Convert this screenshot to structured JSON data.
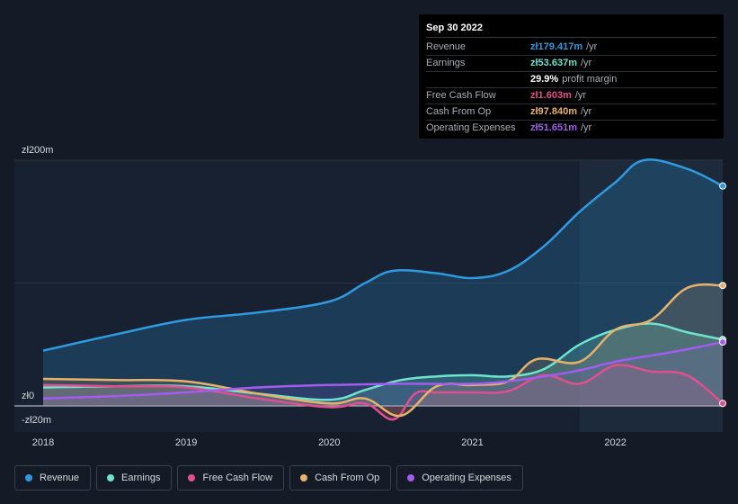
{
  "tooltip": {
    "date": "Sep 30 2022",
    "rows": [
      {
        "label": "Revenue",
        "value": "zł179.417m",
        "unit": "/yr",
        "color": "#2f9ae0"
      },
      {
        "label": "Earnings",
        "value": "zł53.637m",
        "unit": "/yr",
        "color": "#6ee3cf"
      },
      {
        "label": "",
        "value": "29.9%",
        "unit": "profit margin",
        "color": "#ffffff"
      },
      {
        "label": "Free Cash Flow",
        "value": "zł1.603m",
        "unit": "/yr",
        "color": "#e0508f"
      },
      {
        "label": "Cash From Op",
        "value": "zł97.840m",
        "unit": "/yr",
        "color": "#e8b26b"
      },
      {
        "label": "Operating Expenses",
        "value": "zł51.651m",
        "unit": "/yr",
        "color": "#a35cf0"
      }
    ]
  },
  "legend": [
    {
      "label": "Revenue",
      "color": "#2f9ae0"
    },
    {
      "label": "Earnings",
      "color": "#6ee3cf"
    },
    {
      "label": "Free Cash Flow",
      "color": "#e0508f"
    },
    {
      "label": "Cash From Op",
      "color": "#e8b26b"
    },
    {
      "label": "Operating Expenses",
      "color": "#a35cf0"
    }
  ],
  "chart_data": {
    "type": "area",
    "y_tick_labels": [
      "zł200m",
      "zł0",
      "-zł20m"
    ],
    "y_ticks": [
      200,
      0,
      -20
    ],
    "ylim": [
      -20,
      200
    ],
    "xlim": [
      2018.0,
      2022.75
    ],
    "x_tick_labels": [
      "2018",
      "2019",
      "2020",
      "2021",
      "2022"
    ],
    "x_ticks": [
      2018,
      2019,
      2020,
      2021,
      2022
    ],
    "highlight_from": 2021.75,
    "grid": true,
    "series": [
      {
        "name": "Revenue",
        "color": "#2f9ae0",
        "x": [
          2018.0,
          2018.5,
          2019.0,
          2019.5,
          2020.0,
          2020.25,
          2020.45,
          2020.75,
          2021.0,
          2021.25,
          2021.5,
          2021.75,
          2022.0,
          2022.2,
          2022.5,
          2022.75
        ],
        "values": [
          45,
          58,
          70,
          76,
          85,
          100,
          110,
          108,
          104,
          110,
          130,
          158,
          182,
          200,
          193,
          179
        ]
      },
      {
        "name": "Earnings",
        "color": "#6ee3cf",
        "x": [
          2018.0,
          2018.5,
          2019.0,
          2019.5,
          2020.0,
          2020.25,
          2020.5,
          2020.75,
          2021.0,
          2021.25,
          2021.5,
          2021.75,
          2022.0,
          2022.25,
          2022.5,
          2022.75
        ],
        "values": [
          15,
          16,
          16,
          10,
          5,
          13,
          21,
          24,
          25,
          24,
          30,
          50,
          62,
          67,
          60,
          54
        ]
      },
      {
        "name": "Free Cash Flow",
        "color": "#e0508f",
        "x": [
          2018.0,
          2018.5,
          2019.0,
          2019.5,
          2020.0,
          2020.25,
          2020.45,
          2020.6,
          2020.75,
          2021.0,
          2021.25,
          2021.5,
          2021.75,
          2022.0,
          2022.25,
          2022.5,
          2022.75
        ],
        "values": [
          17,
          16,
          15,
          6,
          -1,
          2,
          -11,
          10,
          11,
          11,
          12,
          25,
          18,
          33,
          28,
          25,
          2
        ]
      },
      {
        "name": "Cash From Op",
        "color": "#e8b26b",
        "x": [
          2018.0,
          2018.5,
          2019.0,
          2019.5,
          2020.0,
          2020.25,
          2020.5,
          2020.75,
          2021.0,
          2021.25,
          2021.45,
          2021.75,
          2022.0,
          2022.25,
          2022.5,
          2022.75
        ],
        "values": [
          22,
          21,
          20,
          10,
          2,
          6,
          -8,
          16,
          17,
          20,
          38,
          36,
          62,
          70,
          96,
          98
        ]
      },
      {
        "name": "Operating Expenses",
        "color": "#a35cf0",
        "x": [
          2018.0,
          2018.5,
          2019.0,
          2019.5,
          2020.0,
          2020.5,
          2021.0,
          2021.25,
          2021.5,
          2021.75,
          2022.0,
          2022.25,
          2022.5,
          2022.75
        ],
        "values": [
          6,
          8,
          11,
          15,
          17,
          18,
          18,
          20,
          24,
          29,
          36,
          41,
          46,
          52
        ]
      }
    ]
  }
}
